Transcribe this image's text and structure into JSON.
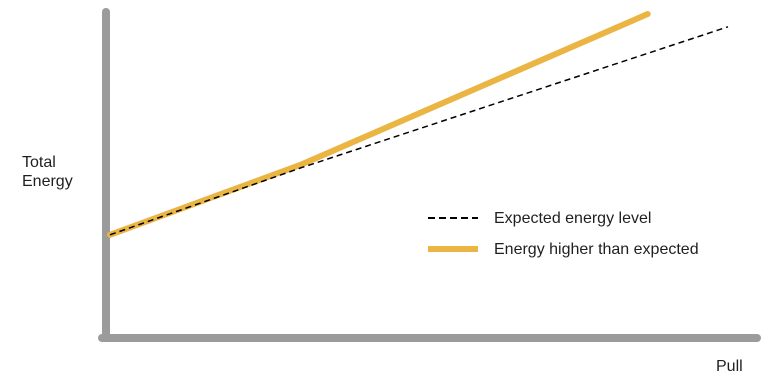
{
  "chart_data": {
    "type": "line",
    "title": "",
    "xlabel": "Pull",
    "ylabel_lines": [
      "Total",
      "Energy"
    ],
    "axes_tick_labels": false,
    "grid": false,
    "legend_placement": "right-center",
    "series": [
      {
        "name": "Expected energy level",
        "style": "dashed",
        "color": "#000000",
        "x": [
          0,
          0.31,
          1.0
        ],
        "y": [
          0.31,
          0.52,
          0.96
        ]
      },
      {
        "name": "Energy higher than expected",
        "style": "solid-thick",
        "color": "#eab542",
        "x": [
          0,
          0.31,
          0.87
        ],
        "y": [
          0.31,
          0.53,
          1.0
        ]
      }
    ],
    "xlim": [
      0,
      1
    ],
    "ylim": [
      0,
      1
    ],
    "colors": {
      "axis": "#9b9b9b",
      "text": "#1f1f1f"
    }
  }
}
